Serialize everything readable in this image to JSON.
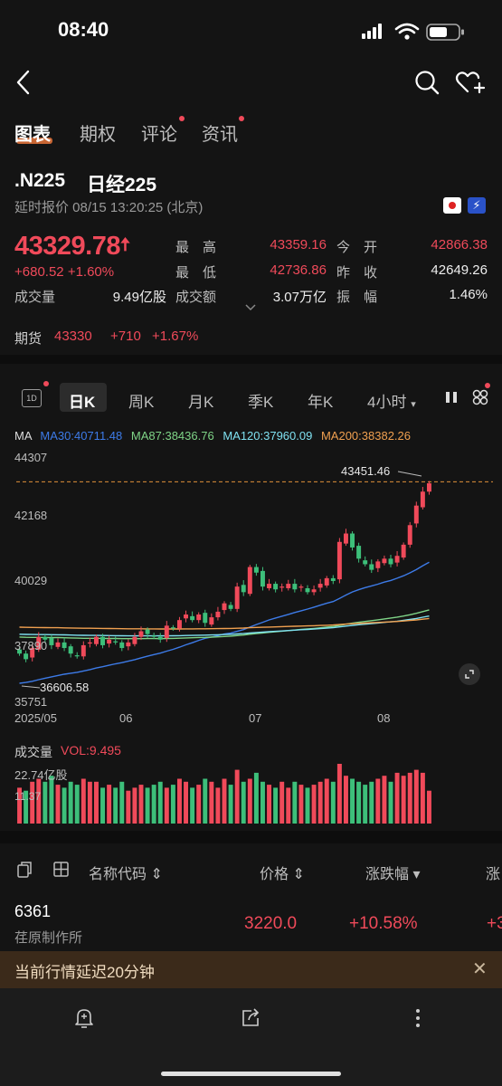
{
  "status_bar": {
    "time": "08:40"
  },
  "tabs": [
    {
      "label": "图表",
      "active": true,
      "dot": false
    },
    {
      "label": "期权",
      "active": false,
      "dot": false
    },
    {
      "label": "评论",
      "active": false,
      "dot": true
    },
    {
      "label": "资讯",
      "active": false,
      "dot": true
    }
  ],
  "quote": {
    "symbol": ".N225",
    "name": "日经225",
    "delay_info": "延时报价 08/15 13:20:25 (北京)",
    "last": "43329.78",
    "change": "+680.52",
    "change_pct": "+1.60%",
    "high_label": "最　高",
    "high": "43359.16",
    "low_label": "最　低",
    "low": "42736.86",
    "open_label": "今　开",
    "open": "42866.38",
    "prev_close_label": "昨　收",
    "prev_close": "42649.26",
    "volume_label": "成交量",
    "volume": "9.49亿股",
    "turnover_label": "成交额",
    "turnover": "3.07万亿",
    "amplitude_label": "振　幅",
    "amplitude": "1.46%"
  },
  "futures": {
    "label": "期货",
    "price": "43330",
    "change": "+710",
    "change_pct": "+1.67%"
  },
  "periods": [
    {
      "label": "日K",
      "active": true
    },
    {
      "label": "周K",
      "active": false
    },
    {
      "label": "月K",
      "active": false
    },
    {
      "label": "季K",
      "active": false
    },
    {
      "label": "年K",
      "active": false
    },
    {
      "label": "4小时",
      "active": false
    }
  ],
  "period_1d_label": "1D",
  "ma": {
    "label": "MA",
    "ma30": "MA30:40711.48",
    "ma87": "MA87:38436.76",
    "ma120": "MA120:37960.09",
    "ma200": "MA200:38382.26",
    "colors": {
      "ma30": "#3d7be8",
      "ma87": "#7fd487",
      "ma120": "#7fe0f0",
      "ma200": "#f0a050"
    }
  },
  "chart_data": {
    "type": "candlestick",
    "y_ticks": [
      "44307",
      "42168",
      "40029",
      "37890",
      "35751"
    ],
    "ylim": [
      35751,
      44307
    ],
    "x_ticks": [
      "2025/05",
      "06",
      "07",
      "08"
    ],
    "annotations": {
      "max_label": "43451.46",
      "min_label": "36606.58"
    },
    "close": [
      37300,
      37100,
      37500,
      37900,
      37800,
      37600,
      37700,
      37500,
      37300,
      37200,
      37600,
      37700,
      37900,
      37600,
      37800,
      37700,
      37500,
      37700,
      37900,
      38100,
      38000,
      37900,
      37800,
      38300,
      38200,
      38500,
      38700,
      38500,
      38700,
      38400,
      38600,
      38800,
      39100,
      38900,
      39700,
      39500,
      40400,
      40200,
      39700,
      39800,
      39600,
      39700,
      39800,
      39600,
      39700,
      39500,
      39600,
      39800,
      40000,
      39900,
      41300,
      41600,
      41100,
      40700,
      40500,
      40300,
      40600,
      40700,
      40500,
      40800,
      41200,
      41900,
      42600,
      43100,
      43400
    ],
    "volume": [
      0.6,
      0.55,
      0.7,
      0.75,
      0.7,
      0.8,
      0.65,
      0.6,
      0.7,
      0.65,
      0.75,
      0.7,
      0.7,
      0.6,
      0.65,
      0.6,
      0.7,
      0.55,
      0.6,
      0.65,
      0.6,
      0.65,
      0.7,
      0.6,
      0.65,
      0.75,
      0.7,
      0.6,
      0.65,
      0.75,
      0.7,
      0.6,
      0.75,
      0.65,
      0.9,
      0.7,
      0.75,
      0.85,
      0.7,
      0.65,
      0.6,
      0.7,
      0.6,
      0.7,
      0.65,
      0.6,
      0.65,
      0.7,
      0.75,
      0.7,
      1.0,
      0.8,
      0.75,
      0.7,
      0.65,
      0.7,
      0.75,
      0.8,
      0.7,
      0.85,
      0.8,
      0.85,
      0.9,
      0.85,
      0.55
    ]
  },
  "volume_panel": {
    "title": "成交量",
    "vol": "VOL:9.495",
    "max": "22.74亿股",
    "mid": "11.37"
  },
  "list": {
    "headers": {
      "name": "名称代码 ⇕",
      "price": "价格 ⇕",
      "change": "涨跌幅 ▾",
      "extra": "涨"
    },
    "row": {
      "code": "6361",
      "name": "荏原制作所",
      "price": "3220.0",
      "change_pct": "+10.58%",
      "extra": "+3"
    }
  },
  "banner": {
    "text": "当前行情延迟20分钟"
  }
}
